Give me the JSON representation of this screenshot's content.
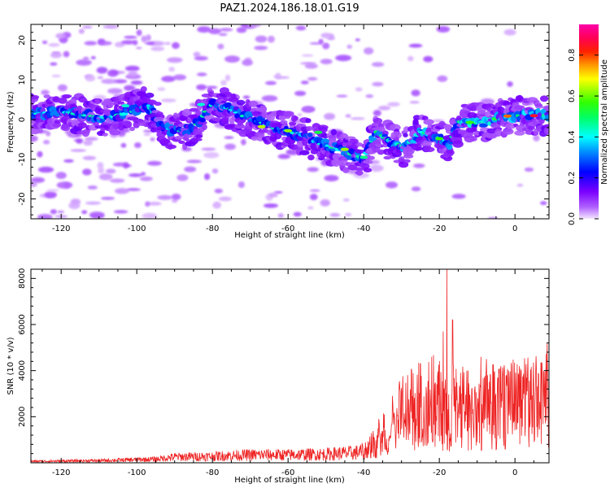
{
  "title": "PAZ1.2024.186.18.01.G19",
  "chart_data": [
    {
      "type": "heatmap",
      "xlabel": "Height of straight line (km)",
      "ylabel": "Frequency (Hz)",
      "xlim": [
        -128,
        9
      ],
      "ylim": [
        -25,
        24
      ],
      "xticks": [
        -120,
        -100,
        -80,
        -60,
        -40,
        -20,
        0
      ],
      "yticks": [
        -20,
        -10,
        0,
        10,
        20
      ],
      "grid": false,
      "colorbar": {
        "label": "Normalized spectral amplitude",
        "range": [
          0,
          0.95
        ],
        "ticks": [
          0.0,
          0.2,
          0.4,
          0.6,
          0.8
        ],
        "colormap": "gist_rainbow (violet→blue→cyan→green→yellow→red→pink)",
        "low_color": "#ffffff"
      },
      "ridge": {
        "description": "frequency of peak spectral amplitude vs height",
        "x": [
          -126,
          -120,
          -113,
          -108,
          -103,
          -97,
          -93,
          -89,
          -85,
          -80,
          -76,
          -72,
          -68,
          -64,
          -60,
          -56,
          -52,
          -48,
          -44,
          -40,
          -37,
          -33,
          -29,
          -25,
          -21,
          -17,
          -15,
          -12,
          -8,
          -4,
          0,
          4,
          8
        ],
        "y": [
          1.5,
          2.0,
          1.0,
          0.5,
          1.5,
          3.5,
          -2.0,
          -3.0,
          -2.0,
          4.0,
          3.0,
          1.0,
          -0.5,
          -2.0,
          -3.0,
          -4.0,
          -6.0,
          -7.0,
          -8.5,
          -10.0,
          -3.0,
          -5.5,
          -7.0,
          -3.0,
          -4.5,
          -6.0,
          -0.5,
          -1.0,
          -0.5,
          0.5,
          1.0,
          1.0,
          1.0
        ]
      }
    },
    {
      "type": "line",
      "xlabel": "Height of straight line (km)",
      "ylabel": "SNR (10 * v/v)",
      "xlim": [
        -128,
        9
      ],
      "ylim": [
        0,
        8400
      ],
      "xticks": [
        -120,
        -100,
        -80,
        -60,
        -40,
        -20,
        0
      ],
      "yticks": [
        2000,
        4000,
        6000,
        8000
      ],
      "color": "#ee2222",
      "grid": false,
      "series": [
        {
          "envelope_x": [
            -128,
            -110,
            -95,
            -90,
            -80,
            -70,
            -60,
            -50,
            -42,
            -38,
            -35,
            -32,
            -30,
            -25,
            -20,
            -18,
            -17,
            -15,
            -12,
            -10,
            -8,
            -5,
            -2,
            0,
            3,
            6,
            9
          ],
          "envelope_y": [
            100,
            150,
            250,
            400,
            450,
            550,
            550,
            600,
            700,
            900,
            1500,
            2000,
            2500,
            3000,
            3200,
            3300,
            3200,
            3000,
            2700,
            3500,
            3600,
            3800,
            3900,
            4000,
            4000,
            4100,
            4200
          ],
          "spikes": [
            {
              "x": -18.0,
              "y": 8400
            },
            {
              "x": -16.5,
              "y": 6200
            },
            {
              "x": -19.0,
              "y": 5700
            },
            {
              "x": -22.0,
              "y": 4600
            },
            {
              "x": -25.0,
              "y": 4300
            },
            {
              "x": -9.0,
              "y": 4600
            },
            {
              "x": -7.5,
              "y": 4500
            },
            {
              "x": 8.5,
              "y": 5200
            }
          ]
        }
      ]
    }
  ]
}
